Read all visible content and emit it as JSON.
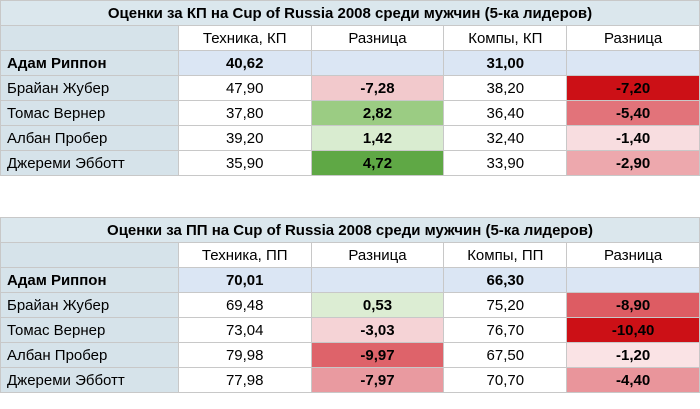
{
  "tables": [
    {
      "title": "Оценки за КП на Cup of Russia 2008 среди мужчин (5-ка лидеров)",
      "headers": [
        "Техника, КП",
        "Разница",
        "Компы, КП",
        "Разница"
      ],
      "leader": {
        "name": "Адам Риппон",
        "tech": "40,62",
        "comp": "31,00"
      },
      "rows": [
        {
          "name": "Брайан Жубер",
          "tech": "47,90",
          "tech_diff": "-7,28",
          "comp": "38,20",
          "comp_diff": "-7,20",
          "tech_diff_color": "#f2c9cc",
          "comp_diff_color": "#cc1016"
        },
        {
          "name": "Томас Вернер",
          "tech": "37,80",
          "tech_diff": "2,82",
          "comp": "36,40",
          "comp_diff": "-5,40",
          "tech_diff_color": "#9bcc83",
          "comp_diff_color": "#e2737a"
        },
        {
          "name": "Албан Пробер",
          "tech": "39,20",
          "tech_diff": "1,42",
          "comp": "32,40",
          "comp_diff": "-1,40",
          "tech_diff_color": "#d9ecd0",
          "comp_diff_color": "#f8dde0"
        },
        {
          "name": "Джереми Эбботт",
          "tech": "35,90",
          "tech_diff": "4,72",
          "comp": "33,90",
          "comp_diff": "-2,90",
          "tech_diff_color": "#5fa845",
          "comp_diff_color": "#eda8ad"
        }
      ]
    },
    {
      "title": "Оценки за ПП на Cup of Russia 2008 среди мужчин (5-ка лидеров)",
      "headers": [
        "Техника, ПП",
        "Разница",
        "Компы, ПП",
        "Разница"
      ],
      "leader": {
        "name": "Адам Риппон",
        "tech": "70,01",
        "comp": "66,30"
      },
      "rows": [
        {
          "name": "Брайан Жубер",
          "tech": "69,48",
          "tech_diff": "0,53",
          "comp": "75,20",
          "comp_diff": "-8,90",
          "tech_diff_color": "#dcedd3",
          "comp_diff_color": "#dd5c63"
        },
        {
          "name": "Томас Вернер",
          "tech": "73,04",
          "tech_diff": "-3,03",
          "comp": "76,70",
          "comp_diff": "-10,40",
          "tech_diff_color": "#f5d3d6",
          "comp_diff_color": "#cc1016"
        },
        {
          "name": "Албан Пробер",
          "tech": "79,98",
          "tech_diff": "-9,97",
          "comp": "67,50",
          "comp_diff": "-1,20",
          "tech_diff_color": "#de636a",
          "comp_diff_color": "#fae3e5"
        },
        {
          "name": "Джереми Эбботт",
          "tech": "77,98",
          "tech_diff": "-7,97",
          "comp": "70,70",
          "comp_diff": "-4,40",
          "tech_diff_color": "#e99aa0",
          "comp_diff_color": "#e9959b"
        }
      ]
    }
  ]
}
